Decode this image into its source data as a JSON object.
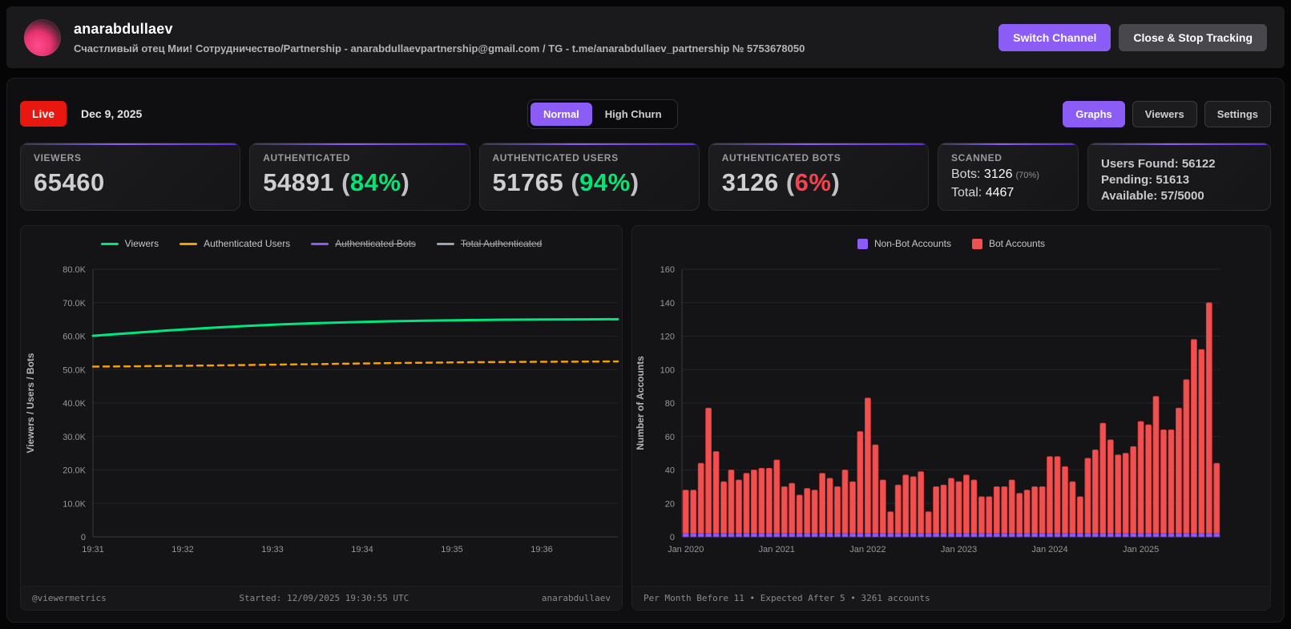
{
  "header": {
    "username": "anarabdullaev",
    "subtitle": "Счастливый отец Мии! Сотрудничество/Partnership - anarabdullaevpartnership@gmail.com / TG - t.me/anarabdullaev_partnership № 5753678050",
    "switch_channel_label": "Switch Channel",
    "close_stop_label": "Close & Stop Tracking"
  },
  "toolbar": {
    "live_label": "Live",
    "date": "Dec 9, 2025",
    "mode_toggle": {
      "options": [
        "Normal",
        "High Churn"
      ],
      "active": "Normal"
    },
    "view_buttons": {
      "options": [
        "Graphs",
        "Viewers",
        "Settings"
      ],
      "active": "Graphs"
    }
  },
  "stats": {
    "viewers": {
      "label": "VIEWERS",
      "value": "65460"
    },
    "authenticated": {
      "label": "AUTHENTICATED",
      "value": "54891",
      "percent": "84%"
    },
    "authenticated_users": {
      "label": "AUTHENTICATED USERS",
      "value": "51765",
      "percent": "94%"
    },
    "authenticated_bots": {
      "label": "AUTHENTICATED BOTS",
      "value": "3126",
      "percent": "6%"
    },
    "scanned": {
      "label": "SCANNED",
      "bots_label": "Bots:",
      "bots_value": "3126",
      "bots_percent": "(70%)",
      "total_label": "Total:",
      "total_value": "4467"
    },
    "summary": {
      "users_found": "Users Found: 56122",
      "pending": "Pending: 51613",
      "available": "Available: 57/5000"
    }
  },
  "line_chart_footer": {
    "left": "@viewermetrics",
    "center": "Started: 12/09/2025 19:30:55 UTC",
    "right": "anarabdullaev"
  },
  "bar_chart_footer": "Per Month Before 11 • Expected After 5 • 3261 accounts",
  "chart_data": [
    {
      "type": "line",
      "title": "",
      "xlabel": "",
      "ylabel": "Viewers / Users / Bots",
      "ylim": [
        0,
        80000
      ],
      "yticks": [
        {
          "v": 0,
          "label": "0"
        },
        {
          "v": 10000,
          "label": "10.0K"
        },
        {
          "v": 20000,
          "label": "20.0K"
        },
        {
          "v": 30000,
          "label": "30.0K"
        },
        {
          "v": 40000,
          "label": "40.0K"
        },
        {
          "v": 50000,
          "label": "50.0K"
        },
        {
          "v": 60000,
          "label": "60.0K"
        },
        {
          "v": 70000,
          "label": "70.0K"
        },
        {
          "v": 80000,
          "label": "80.0K"
        }
      ],
      "xticks": [
        "19:31",
        "19:32",
        "19:33",
        "19:34",
        "19:35",
        "19:36"
      ],
      "xtick_fraction_step": 0.171,
      "grid": true,
      "legend_position": "top",
      "legend": [
        {
          "name": "Viewers",
          "color": "#00e67e",
          "hidden": false
        },
        {
          "name": "Authenticated Users",
          "color": "#f59e0b",
          "hidden": false
        },
        {
          "name": "Authenticated Bots",
          "color": "#8b5cf6",
          "hidden": true
        },
        {
          "name": "Total Authenticated",
          "color": "#9ca3af",
          "hidden": true
        }
      ],
      "series": [
        {
          "name": "Viewers",
          "color": "#00e67e",
          "dash": false,
          "width": 3,
          "values": [
            60100,
            60900,
            61700,
            62400,
            63000,
            63500,
            63900,
            64200,
            64450,
            64650,
            64800,
            64900,
            64950,
            65000,
            65050
          ]
        },
        {
          "name": "Authenticated Users",
          "color": "#f59e0b",
          "dash": true,
          "width": 2.5,
          "values": [
            50900,
            50980,
            51080,
            51200,
            51350,
            51500,
            51650,
            51800,
            51950,
            52080,
            52180,
            52260,
            52330,
            52390,
            52440
          ]
        }
      ]
    },
    {
      "type": "bar",
      "stacked": true,
      "title": "",
      "xlabel": "",
      "ylabel": "Number of Accounts",
      "ylim": [
        0,
        160
      ],
      "yticks": [
        {
          "v": 0,
          "label": "0"
        },
        {
          "v": 20,
          "label": "20"
        },
        {
          "v": 40,
          "label": "40"
        },
        {
          "v": 60,
          "label": "60"
        },
        {
          "v": 80,
          "label": "80"
        },
        {
          "v": 100,
          "label": "100"
        },
        {
          "v": 120,
          "label": "120"
        },
        {
          "v": 140,
          "label": "140"
        },
        {
          "v": 160,
          "label": "160"
        }
      ],
      "xticks": [
        "Jan 2020",
        "Jan 2021",
        "Jan 2022",
        "Jan 2023",
        "Jan 2024",
        "Jan 2025"
      ],
      "xtick_every": 12,
      "grid": true,
      "legend_position": "top",
      "legend": [
        {
          "name": "Non-Bot Accounts",
          "color": "#8b5cf6"
        },
        {
          "name": "Bot Accounts",
          "color": "#f05050"
        }
      ],
      "series": [
        {
          "name": "Non-Bot Accounts",
          "color": "#8b5cf6",
          "border": "#7c3aed",
          "values": [
            2,
            2,
            2,
            2,
            2,
            2,
            2,
            2,
            2,
            2,
            2,
            2,
            2,
            2,
            2,
            2,
            2,
            2,
            2,
            2,
            2,
            2,
            2,
            2,
            2,
            2,
            2,
            2,
            2,
            2,
            2,
            2,
            2,
            2,
            2,
            2,
            2,
            2,
            2,
            2,
            2,
            2,
            2,
            2,
            2,
            2,
            2,
            2,
            2,
            2,
            2,
            2,
            2,
            2,
            2,
            2,
            2,
            2,
            2,
            2,
            2,
            2,
            2,
            2,
            2,
            2,
            2,
            2,
            2,
            2,
            2
          ]
        },
        {
          "name": "Bot Accounts",
          "color": "#f05050",
          "border": "#d93636",
          "values": [
            26,
            26,
            42,
            75,
            49,
            31,
            38,
            32,
            36,
            38,
            39,
            39,
            44,
            28,
            30,
            23,
            27,
            26,
            36,
            33,
            28,
            38,
            31,
            61,
            81,
            53,
            32,
            13,
            29,
            35,
            34,
            37,
            13,
            28,
            29,
            33,
            31,
            35,
            32,
            22,
            22,
            28,
            28,
            32,
            24,
            26,
            28,
            28,
            46,
            46,
            40,
            31,
            22,
            45,
            50,
            66,
            56,
            47,
            48,
            52,
            67,
            65,
            82,
            62,
            62,
            75,
            92,
            116,
            110,
            138,
            42
          ]
        }
      ]
    }
  ]
}
